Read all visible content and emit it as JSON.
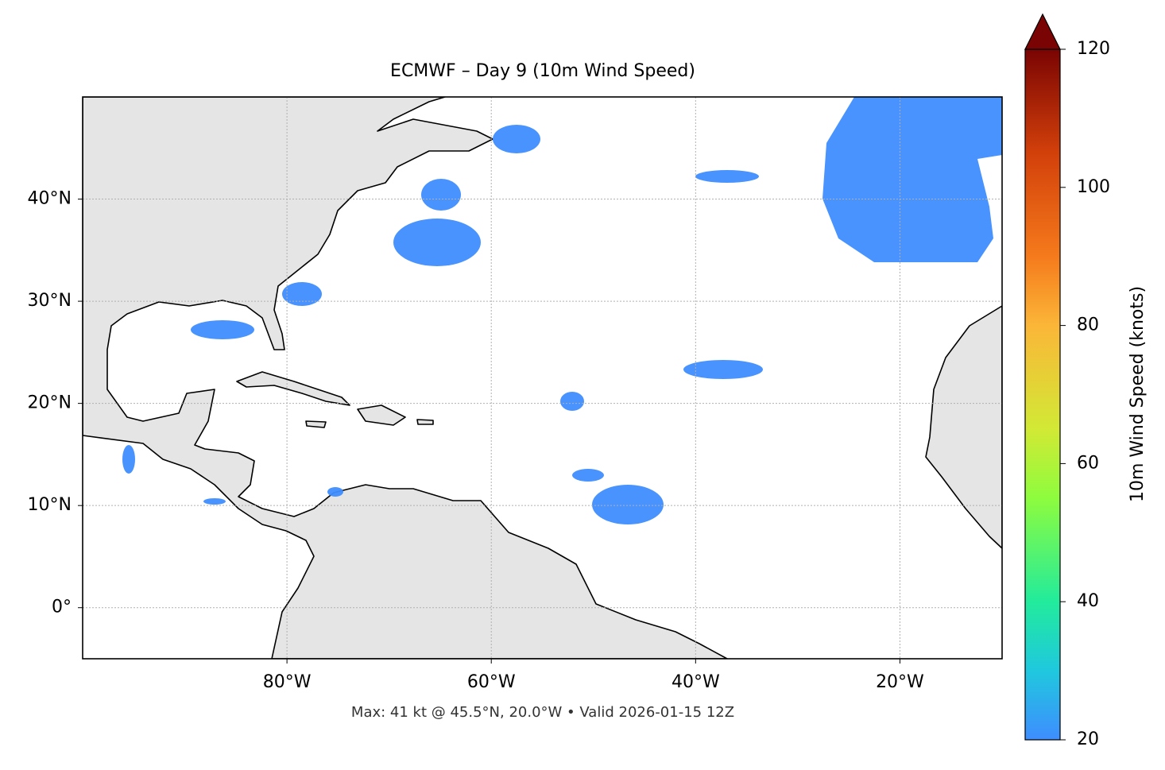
{
  "title": "ECMWF – Day 9 (10m Wind Speed)",
  "map": {
    "lon_range": [
      -100,
      -10
    ],
    "lat_range": [
      -5,
      50
    ],
    "lon_ticks": [
      {
        "value": -80,
        "label": "80°W"
      },
      {
        "value": -60,
        "label": "60°W"
      },
      {
        "value": -40,
        "label": "40°W"
      },
      {
        "value": -20,
        "label": "20°W"
      }
    ],
    "lat_ticks": [
      {
        "value": 0,
        "label": "0°"
      },
      {
        "value": 10,
        "label": "10°N"
      },
      {
        "value": 20,
        "label": "20°N"
      },
      {
        "value": 30,
        "label": "30°N"
      },
      {
        "value": 40,
        "label": "40°N"
      }
    ]
  },
  "colorbar": {
    "label": "10m Wind Speed (knots)",
    "range": [
      20,
      120
    ],
    "ticks": [
      20,
      40,
      60,
      80,
      100,
      120
    ]
  },
  "footnote": "Max: 41 kt @ 45.5°N, 20.0°W • Valid 2026-01-15 12Z"
}
